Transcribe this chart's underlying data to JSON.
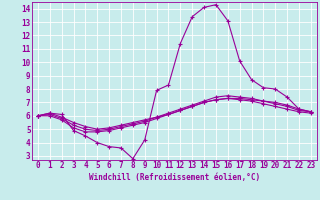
{
  "xlabel": "Windchill (Refroidissement éolien,°C)",
  "background_color": "#c8ecec",
  "line_color": "#990099",
  "grid_color": "#ffffff",
  "xlim": [
    -0.5,
    23.5
  ],
  "ylim": [
    2.7,
    14.5
  ],
  "xticks": [
    0,
    1,
    2,
    3,
    4,
    5,
    6,
    7,
    8,
    9,
    10,
    11,
    12,
    13,
    14,
    15,
    16,
    17,
    18,
    19,
    20,
    21,
    22,
    23
  ],
  "yticks": [
    3,
    4,
    5,
    6,
    7,
    8,
    9,
    10,
    11,
    12,
    13,
    14
  ],
  "line1_x": [
    0,
    1,
    2,
    3,
    4,
    5,
    6,
    7,
    8,
    9,
    10,
    11,
    12,
    13,
    14,
    15,
    16,
    17,
    18,
    19,
    20,
    21,
    22,
    23
  ],
  "line1_y": [
    6.0,
    6.2,
    6.1,
    4.9,
    4.5,
    4.0,
    3.7,
    3.6,
    2.8,
    4.2,
    7.9,
    8.3,
    11.4,
    13.4,
    14.1,
    14.3,
    13.1,
    10.1,
    8.7,
    8.1,
    8.0,
    7.4,
    6.5,
    6.3
  ],
  "line2_x": [
    0,
    1,
    2,
    3,
    4,
    5,
    6,
    7,
    8,
    9,
    10,
    11,
    12,
    13,
    14,
    15,
    16,
    17,
    18,
    19,
    20,
    21,
    22,
    23
  ],
  "line2_y": [
    6.0,
    6.2,
    5.9,
    5.5,
    5.2,
    5.0,
    5.1,
    5.3,
    5.5,
    5.7,
    5.9,
    6.1,
    6.4,
    6.7,
    7.0,
    7.2,
    7.3,
    7.3,
    7.2,
    7.1,
    7.0,
    6.8,
    6.5,
    6.3
  ],
  "line3_x": [
    0,
    1,
    2,
    3,
    4,
    5,
    6,
    7,
    8,
    9,
    10,
    11,
    12,
    13,
    14,
    15,
    16,
    17,
    18,
    19,
    20,
    21,
    22,
    23
  ],
  "line3_y": [
    6.0,
    6.1,
    5.8,
    5.3,
    5.0,
    4.9,
    5.0,
    5.2,
    5.4,
    5.6,
    5.9,
    6.2,
    6.5,
    6.8,
    7.1,
    7.4,
    7.5,
    7.4,
    7.3,
    7.1,
    6.9,
    6.7,
    6.4,
    6.3
  ],
  "line4_x": [
    0,
    1,
    2,
    3,
    4,
    5,
    6,
    7,
    8,
    9,
    10,
    11,
    12,
    13,
    14,
    15,
    16,
    17,
    18,
    19,
    20,
    21,
    22,
    23
  ],
  "line4_y": [
    6.0,
    6.0,
    5.7,
    5.1,
    4.8,
    4.8,
    4.9,
    5.1,
    5.3,
    5.5,
    5.8,
    6.1,
    6.4,
    6.7,
    7.0,
    7.2,
    7.3,
    7.2,
    7.1,
    6.9,
    6.7,
    6.5,
    6.3,
    6.2
  ],
  "tick_fontsize": 5.5,
  "xlabel_fontsize": 5.5,
  "marker_size": 3,
  "linewidth": 0.8
}
